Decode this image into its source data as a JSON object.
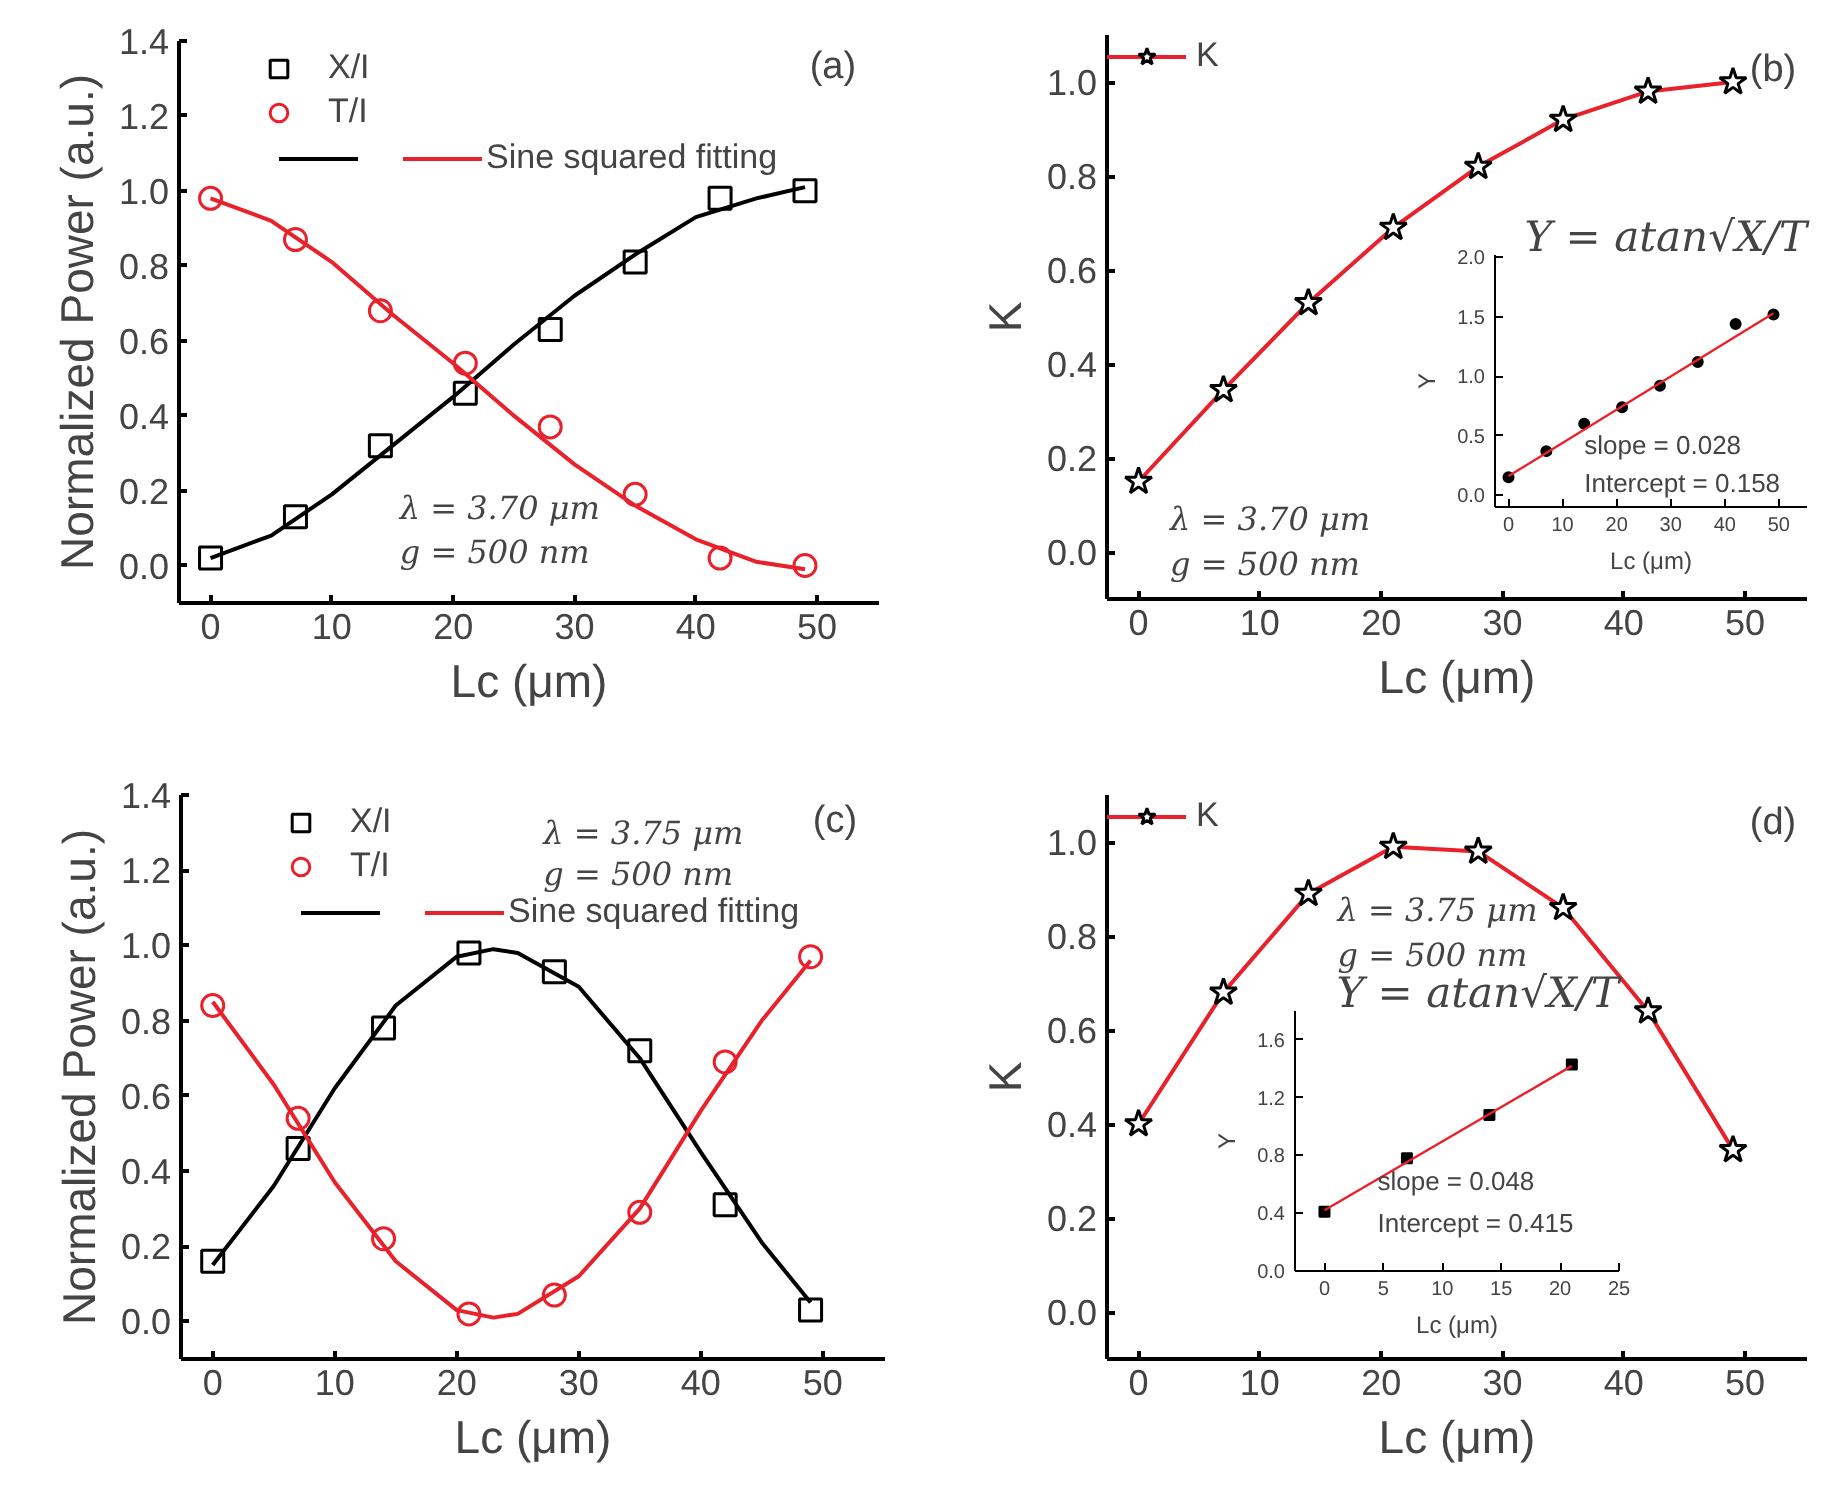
{
  "chart_data": [
    {
      "type": "scatter",
      "xlabel": "Lc (μm)",
      "ylabel": "Normalized Power (a.u.)",
      "xlim": [
        -2.6,
        55.1
      ],
      "ylim": [
        -0.1,
        1.4
      ],
      "xticks": [
        0,
        10,
        20,
        30,
        40,
        50
      ],
      "yticks": [
        {
          "value": 0,
          "label": "0.0"
        },
        {
          "value": 0.2,
          "label": "0.2"
        },
        {
          "value": 0.4,
          "label": "0.4"
        },
        {
          "value": 0.6,
          "label": "0.6"
        },
        {
          "value": 0.8,
          "label": "0.8"
        },
        {
          "value": 1.0,
          "label": "1.0"
        },
        {
          "value": 1.2,
          "label": "1.2"
        },
        {
          "value": 1.4,
          "label": "1.4"
        }
      ],
      "legend": "top left",
      "annotations": [
        "(a)",
        "λ = 3.70 μm",
        "g = 500 nm"
      ],
      "series": [
        {
          "name": "X/I",
          "type": "scatter",
          "marker": "square",
          "color": "#000000",
          "x": [
            0,
            7,
            14,
            21,
            28,
            35,
            42,
            49
          ],
          "values": [
            0.02,
            0.13,
            0.32,
            0.46,
            0.63,
            0.81,
            0.98,
            1.0
          ]
        },
        {
          "name": "T/I",
          "type": "scatter",
          "marker": "circle",
          "color": "#e8212a",
          "x": [
            0,
            7,
            14,
            21,
            28,
            35,
            42,
            49
          ],
          "values": [
            0.98,
            0.87,
            0.68,
            0.54,
            0.37,
            0.19,
            0.02,
            0.0
          ]
        },
        {
          "type": "line",
          "color": "#000000",
          "x": [
            0,
            5,
            10,
            15,
            20,
            25,
            30,
            35,
            40,
            45,
            49
          ],
          "values": [
            0.02,
            0.08,
            0.19,
            0.32,
            0.45,
            0.59,
            0.72,
            0.83,
            0.93,
            0.98,
            1.01
          ]
        },
        {
          "name": "Sine squared fitting",
          "type": "line",
          "color": "#e8212a",
          "x": [
            0,
            5,
            10,
            15,
            20,
            25,
            30,
            35,
            40,
            45,
            49
          ],
          "values": [
            0.98,
            0.92,
            0.81,
            0.67,
            0.54,
            0.4,
            0.27,
            0.16,
            0.07,
            0.01,
            -0.01
          ]
        }
      ]
    },
    {
      "type": "line",
      "xlabel": "Lc (μm)",
      "ylabel": "K",
      "xlim": [
        -2.6,
        55.1
      ],
      "ylim": [
        -0.1,
        1.1
      ],
      "xticks": [
        0,
        10,
        20,
        30,
        40,
        50
      ],
      "yticks": [
        {
          "value": 0,
          "label": "0.0"
        },
        {
          "value": 0.2,
          "label": "0.2"
        },
        {
          "value": 0.4,
          "label": "0.4"
        },
        {
          "value": 0.6,
          "label": "0.6"
        },
        {
          "value": 0.8,
          "label": "0.8"
        },
        {
          "value": 1.0,
          "label": "1.0"
        }
      ],
      "legend": "top left",
      "marker": "star",
      "annotations": [
        "(b)",
        "λ = 3.70 μm",
        "g = 500 nm"
      ],
      "x": [
        0,
        7,
        14,
        21,
        28,
        35,
        42,
        49
      ],
      "series": [
        {
          "name": "K",
          "color": "#e8212a",
          "values": [
            0.15,
            0.345,
            0.53,
            0.69,
            0.82,
            0.92,
            0.98,
            1.0
          ]
        }
      ]
    },
    {
      "type": "scatter",
      "title": "Y = atan√X/T",
      "xlabel": "Lc (μm)",
      "ylabel": "Y",
      "xlim": [
        -2.5,
        55.2
      ],
      "ylim": [
        -0.1,
        2.02
      ],
      "xticks": [
        0,
        10,
        20,
        30,
        40,
        50
      ],
      "yticks": [
        {
          "value": 0,
          "label": "0.0"
        },
        {
          "value": 0.5,
          "label": "0.5"
        },
        {
          "value": 1.0,
          "label": "1.0"
        },
        {
          "value": 1.5,
          "label": "1.5"
        },
        {
          "value": 2.0,
          "label": "2.0"
        }
      ],
      "annotations": [
        "slope = 0.028",
        "Intercept = 0.158"
      ],
      "series": [
        {
          "type": "scatter",
          "marker": "circle",
          "color": "#000000",
          "x": [
            0,
            7,
            14,
            21,
            28,
            35,
            42,
            49
          ],
          "values": [
            0.15,
            0.37,
            0.6,
            0.74,
            0.92,
            1.12,
            1.44,
            1.52
          ]
        },
        {
          "type": "line",
          "color": "#e8212a",
          "x": [
            0,
            49
          ],
          "values": [
            0.16,
            1.53
          ]
        }
      ]
    },
    {
      "type": "scatter",
      "xlabel": "Lc (μm)",
      "ylabel": "Normalized Power (a.u.)",
      "xlim": [
        -2.6,
        55.1
      ],
      "ylim": [
        -0.1,
        1.4
      ],
      "xticks": [
        0,
        10,
        20,
        30,
        40,
        50
      ],
      "yticks": [
        {
          "value": 0,
          "label": "0.0"
        },
        {
          "value": 0.2,
          "label": "0.2"
        },
        {
          "value": 0.4,
          "label": "0.4"
        },
        {
          "value": 0.6,
          "label": "0.6"
        },
        {
          "value": 0.8,
          "label": "0.8"
        },
        {
          "value": 1.0,
          "label": "1.0"
        },
        {
          "value": 1.2,
          "label": "1.2"
        },
        {
          "value": 1.4,
          "label": "1.4"
        }
      ],
      "legend": "top left",
      "annotations": [
        "(c)",
        "λ = 3.75 μm",
        "g = 500 nm"
      ],
      "series": [
        {
          "name": "X/I",
          "type": "scatter",
          "marker": "square",
          "color": "#000000",
          "x": [
            0,
            7,
            14,
            21,
            28,
            35,
            42,
            49
          ],
          "values": [
            0.16,
            0.46,
            0.78,
            0.98,
            0.93,
            0.72,
            0.31,
            0.03
          ]
        },
        {
          "name": "T/I",
          "type": "scatter",
          "marker": "circle",
          "color": "#e8212a",
          "x": [
            0,
            7,
            14,
            21,
            28,
            35,
            42,
            49
          ],
          "values": [
            0.84,
            0.54,
            0.22,
            0.02,
            0.07,
            0.29,
            0.69,
            0.97
          ]
        },
        {
          "type": "line",
          "color": "#000000",
          "x": [
            0,
            5,
            10,
            15,
            20,
            23,
            25,
            30,
            35,
            40,
            45,
            49
          ],
          "values": [
            0.15,
            0.36,
            0.62,
            0.84,
            0.97,
            0.99,
            0.98,
            0.89,
            0.7,
            0.45,
            0.21,
            0.05
          ]
        },
        {
          "name": "Sine squared fitting",
          "type": "line",
          "color": "#e8212a",
          "x": [
            0,
            5,
            10,
            15,
            20,
            23,
            25,
            30,
            35,
            40,
            45,
            49
          ],
          "values": [
            0.85,
            0.63,
            0.37,
            0.16,
            0.03,
            0.01,
            0.02,
            0.12,
            0.3,
            0.56,
            0.8,
            0.96
          ]
        }
      ]
    },
    {
      "type": "line",
      "xlabel": "Lc (μm)",
      "ylabel": "K",
      "xlim": [
        -2.6,
        55.1
      ],
      "ylim": [
        -0.1,
        1.1
      ],
      "xticks": [
        0,
        10,
        20,
        30,
        40,
        50
      ],
      "yticks": [
        {
          "value": 0,
          "label": "0.0"
        },
        {
          "value": 0.2,
          "label": "0.2"
        },
        {
          "value": 0.4,
          "label": "0.4"
        },
        {
          "value": 0.6,
          "label": "0.6"
        },
        {
          "value": 0.8,
          "label": "0.8"
        },
        {
          "value": 1.0,
          "label": "1.0"
        }
      ],
      "legend": "top left",
      "marker": "star",
      "annotations": [
        "(d)",
        "λ = 3.75 μm",
        "g = 500 nm"
      ],
      "x": [
        0,
        7,
        14,
        21,
        28,
        35,
        42,
        49
      ],
      "series": [
        {
          "name": "K",
          "color": "#e8212a",
          "values": [
            0.4,
            0.68,
            0.89,
            0.99,
            0.98,
            0.86,
            0.64,
            0.345
          ]
        }
      ]
    },
    {
      "type": "scatter",
      "title": "Y = atan√X/T",
      "xlabel": "Lc (μm)",
      "ylabel": "Y",
      "xlim": [
        -2.5,
        25
      ],
      "ylim": [
        0,
        1.8
      ],
      "xticks": [
        0,
        5,
        10,
        15,
        20,
        25
      ],
      "yticks": [
        {
          "value": 0,
          "label": "0.0"
        },
        {
          "value": 0.4,
          "label": "0.4"
        },
        {
          "value": 0.8,
          "label": "0.8"
        },
        {
          "value": 1.2,
          "label": "1.2"
        },
        {
          "value": 1.6,
          "label": "1.6"
        }
      ],
      "annotations": [
        "slope = 0.048",
        "Intercept = 0.415"
      ],
      "series": [
        {
          "type": "scatter",
          "marker": "square",
          "color": "#000000",
          "x": [
            0,
            7,
            14,
            21
          ],
          "values": [
            0.41,
            0.78,
            1.08,
            1.43
          ]
        },
        {
          "type": "line",
          "color": "#e8212a",
          "x": [
            0,
            21
          ],
          "values": [
            0.42,
            1.42
          ]
        }
      ]
    }
  ]
}
